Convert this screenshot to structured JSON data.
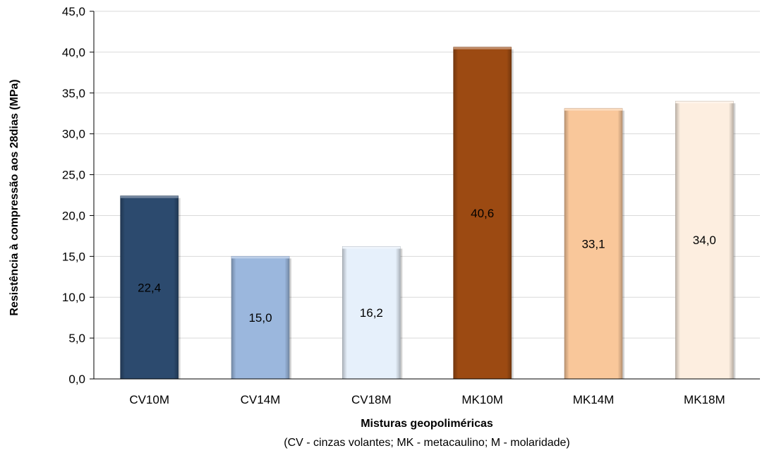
{
  "chart_data": {
    "type": "bar",
    "categories": [
      "CV10M",
      "CV14M",
      "CV18M",
      "MK10M",
      "MK14M",
      "MK18M"
    ],
    "values": [
      22.4,
      15.0,
      16.2,
      40.6,
      33.1,
      34.0
    ],
    "value_labels": [
      "22,4",
      "15,0",
      "16,2",
      "40,6",
      "33,1",
      "34,0"
    ],
    "colors": [
      "#2c4a6e",
      "#9bb7dd",
      "#e6f0fb",
      "#9c4a12",
      "#f9c79a",
      "#fdeee0"
    ],
    "yticks": [
      "0,0",
      "5,0",
      "10,0",
      "15,0",
      "20,0",
      "25,0",
      "30,0",
      "35,0",
      "40,0",
      "45,0"
    ],
    "ylim": [
      0,
      45
    ],
    "grid": true,
    "legend": "none",
    "xlabel": "Misturas geopoliméricas",
    "xlabel_note": "(CV - cinzas volantes; MK - metacaulino; M - molaridade)",
    "ylabel": "Resistência à compressão aos 28dias (MPa)"
  }
}
